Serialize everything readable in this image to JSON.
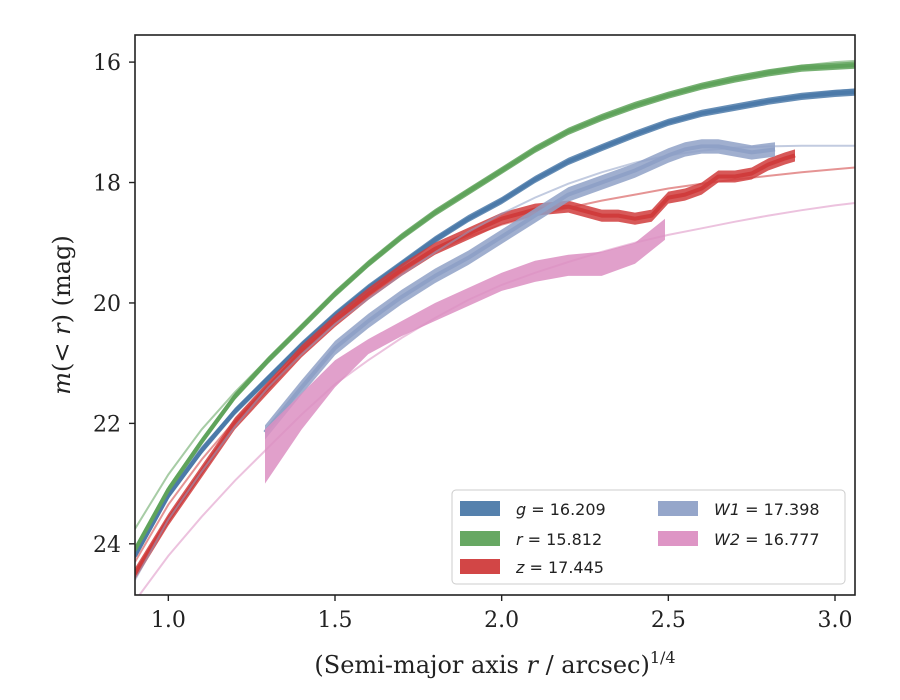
{
  "chart_data": {
    "type": "line",
    "xlabel": "(Semi-major axis r / arcsec)^1/4",
    "xlabel_parts": {
      "pre": "(Semi-major axis ",
      "var": "r",
      "post": " / arcsec)",
      "sup": "1/4"
    },
    "ylabel": "m(< r) (mag)",
    "ylabel_parts": {
      "var": "m",
      "mid": "(< ",
      "var2": "r",
      "post": ") (mag)"
    },
    "xlim": [
      0.9,
      3.06
    ],
    "ylim": [
      24.85,
      15.55
    ],
    "y_inverted": true,
    "x_ticks": [
      1.0,
      1.5,
      2.0,
      2.5,
      3.0
    ],
    "x_tick_labels": [
      "1.0",
      "1.5",
      "2.0",
      "2.5",
      "3.0"
    ],
    "y_ticks": [
      16,
      18,
      20,
      22,
      24
    ],
    "y_tick_labels": [
      "16",
      "18",
      "20",
      "22",
      "24"
    ],
    "grid": false,
    "legend_position": "lower-right",
    "legend_columns": 2,
    "series": [
      {
        "name": "g = 16.209",
        "label_var": "g",
        "label_value": "= 16.209",
        "color": "#4c7aa9",
        "band_width_mag": 0.06,
        "x": [
          0.9,
          1.0,
          1.1,
          1.2,
          1.3,
          1.4,
          1.5,
          1.6,
          1.7,
          1.8,
          1.9,
          2.0,
          2.1,
          2.2,
          2.3,
          2.4,
          2.5,
          2.6,
          2.7,
          2.8,
          2.9,
          3.0,
          3.06
        ],
        "y": [
          24.2,
          23.2,
          22.45,
          21.8,
          21.25,
          20.7,
          20.2,
          19.75,
          19.35,
          18.95,
          18.6,
          18.3,
          17.95,
          17.65,
          17.42,
          17.2,
          17.0,
          16.85,
          16.75,
          16.65,
          16.57,
          16.52,
          16.5
        ],
        "model": {
          "x": [
            0.9,
            1.0,
            1.1,
            1.2,
            1.3,
            1.4,
            1.5,
            1.6,
            1.7,
            1.8,
            1.9,
            2.0,
            2.1,
            2.2,
            2.3,
            2.4,
            2.5,
            2.6,
            2.7,
            2.8,
            2.9,
            3.0,
            3.06
          ],
          "y": [
            24.1,
            23.1,
            22.4,
            21.78,
            21.22,
            20.7,
            20.22,
            19.78,
            19.37,
            18.98,
            18.62,
            18.28,
            17.96,
            17.67,
            17.42,
            17.2,
            17.02,
            16.87,
            16.75,
            16.64,
            16.55,
            16.48,
            16.45
          ]
        }
      },
      {
        "name": "r = 15.812",
        "label_var": "r",
        "label_value": "= 15.812",
        "color": "#5fa35b",
        "band_width_mag": 0.06,
        "x": [
          0.9,
          1.0,
          1.1,
          1.2,
          1.3,
          1.4,
          1.5,
          1.6,
          1.7,
          1.8,
          1.9,
          2.0,
          2.1,
          2.2,
          2.3,
          2.4,
          2.5,
          2.6,
          2.7,
          2.8,
          2.9,
          3.0,
          3.06
        ],
        "y": [
          24.1,
          23.1,
          22.3,
          21.55,
          20.95,
          20.4,
          19.85,
          19.35,
          18.9,
          18.5,
          18.15,
          17.8,
          17.45,
          17.15,
          16.92,
          16.72,
          16.55,
          16.4,
          16.28,
          16.18,
          16.1,
          16.07,
          16.05
        ],
        "model": {
          "x": [
            0.9,
            1.0,
            1.1,
            1.2,
            1.3,
            1.4,
            1.5,
            1.6,
            1.7,
            1.8,
            1.9,
            2.0,
            2.1,
            2.2,
            2.3,
            2.4,
            2.5,
            2.6,
            2.7,
            2.8,
            2.9,
            3.0,
            3.06
          ],
          "y": [
            23.75,
            22.85,
            22.1,
            21.48,
            20.92,
            20.38,
            19.87,
            19.38,
            18.92,
            18.5,
            18.12,
            17.78,
            17.46,
            17.17,
            16.92,
            16.72,
            16.55,
            16.4,
            16.27,
            16.15,
            16.06,
            16.0,
            15.98
          ]
        }
      },
      {
        "name": "z = 17.445",
        "label_var": "z",
        "label_value": "= 17.445",
        "color": "#d03c3c",
        "band_width_mag": 0.1,
        "x": [
          0.9,
          1.0,
          1.1,
          1.2,
          1.3,
          1.4,
          1.5,
          1.6,
          1.7,
          1.8,
          1.9,
          2.0,
          2.1,
          2.2,
          2.3,
          2.35,
          2.4,
          2.45,
          2.5,
          2.55,
          2.6,
          2.65,
          2.7,
          2.75,
          2.8,
          2.85,
          2.88
        ],
        "y": [
          24.5,
          23.6,
          22.8,
          22.0,
          21.4,
          20.8,
          20.3,
          19.85,
          19.45,
          19.1,
          18.85,
          18.6,
          18.45,
          18.4,
          18.55,
          18.55,
          18.6,
          18.55,
          18.25,
          18.2,
          18.1,
          17.9,
          17.9,
          17.85,
          17.7,
          17.6,
          17.55
        ],
        "model": {
          "x": [
            0.9,
            1.0,
            1.1,
            1.2,
            1.3,
            1.4,
            1.5,
            1.6,
            1.7,
            1.8,
            1.9,
            2.0,
            2.1,
            2.2,
            2.3,
            2.4,
            2.5,
            2.6,
            2.7,
            2.8,
            2.9,
            3.0,
            3.06
          ],
          "y": [
            24.3,
            23.35,
            22.6,
            21.95,
            21.35,
            20.8,
            20.3,
            19.85,
            19.45,
            19.15,
            18.9,
            18.7,
            18.55,
            18.42,
            18.3,
            18.2,
            18.1,
            18.02,
            17.95,
            17.89,
            17.83,
            17.78,
            17.75
          ]
        }
      },
      {
        "name": "W1 = 17.398",
        "label_var": "W1",
        "label_value": "= 17.398",
        "color": "#8fa1c7",
        "band_width_mag": 0.12,
        "x": [
          1.29,
          1.4,
          1.5,
          1.6,
          1.7,
          1.8,
          1.9,
          2.0,
          2.1,
          2.2,
          2.3,
          2.4,
          2.5,
          2.55,
          2.6,
          2.65,
          2.7,
          2.75,
          2.82
        ],
        "y": [
          22.15,
          21.4,
          20.75,
          20.3,
          19.9,
          19.55,
          19.25,
          18.9,
          18.55,
          18.2,
          18.0,
          17.8,
          17.55,
          17.45,
          17.4,
          17.4,
          17.45,
          17.5,
          17.45
        ],
        "model": {
          "x": [
            0.9,
            1.0,
            1.1,
            1.2,
            1.3,
            1.4,
            1.5,
            1.6,
            1.7,
            1.8,
            1.9,
            2.0,
            2.1,
            2.2,
            2.3,
            2.4,
            2.5,
            2.6,
            2.7,
            2.8,
            2.9,
            3.0,
            3.06
          ],
          "y": [
            24.6,
            23.6,
            22.8,
            22.05,
            21.4,
            20.85,
            20.35,
            19.93,
            19.53,
            19.16,
            18.82,
            18.52,
            18.25,
            18.02,
            17.83,
            17.67,
            17.55,
            17.47,
            17.42,
            17.4,
            17.39,
            17.39,
            17.39
          ]
        }
      },
      {
        "name": "W2 = 16.777",
        "label_var": "W2",
        "label_value": "= 16.777",
        "color": "#dc8fc2",
        "band_upper": [
          22.1,
          21.5,
          20.95,
          20.6,
          20.3,
          20.0,
          19.75,
          19.5,
          19.3,
          19.2,
          19.15,
          19.0,
          18.6
        ],
        "band_lower": [
          23.0,
          22.1,
          21.4,
          20.85,
          20.55,
          20.3,
          20.05,
          19.8,
          19.65,
          19.55,
          19.55,
          19.35,
          18.95
        ],
        "x": [
          1.29,
          1.4,
          1.5,
          1.6,
          1.7,
          1.8,
          1.9,
          2.0,
          2.1,
          2.2,
          2.3,
          2.4,
          2.49
        ],
        "model": {
          "x": [
            0.9,
            1.0,
            1.1,
            1.2,
            1.3,
            1.4,
            1.5,
            1.6,
            1.7,
            1.8,
            1.9,
            2.0,
            2.1,
            2.2,
            2.3,
            2.4,
            2.5,
            2.6,
            2.7,
            2.8,
            2.9,
            3.0,
            3.06
          ],
          "y": [
            24.95,
            24.2,
            23.55,
            22.95,
            22.4,
            21.85,
            21.35,
            20.95,
            20.58,
            20.25,
            19.95,
            19.7,
            19.5,
            19.32,
            19.15,
            19.0,
            18.87,
            18.76,
            18.65,
            18.55,
            18.46,
            18.38,
            18.34
          ]
        }
      }
    ]
  }
}
